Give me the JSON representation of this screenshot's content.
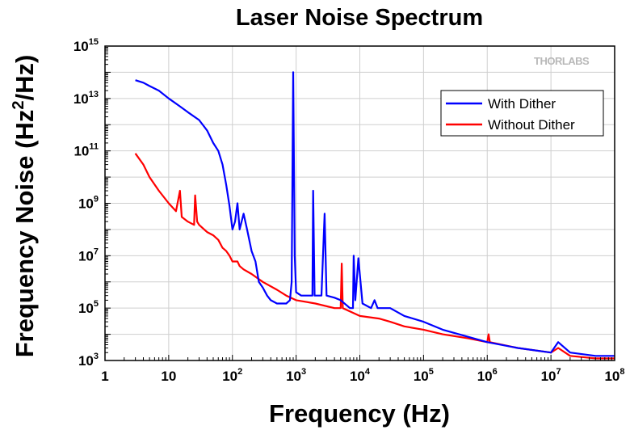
{
  "chart_data": {
    "type": "line",
    "title": "Laser Noise Spectrum",
    "xlabel": "Frequency (Hz)",
    "ylabel": {
      "prefix": "Frequency Noise (Hz",
      "sup": "2",
      "suffix": "/Hz)"
    },
    "x_scale": "log",
    "y_scale": "log",
    "xlim": [
      1,
      100000000
    ],
    "ylim": [
      1000,
      1000000000000000
    ],
    "x_ticks": [
      {
        "value": 1,
        "base": "1",
        "exp": ""
      },
      {
        "value": 10,
        "base": "10",
        "exp": ""
      },
      {
        "value": 100,
        "base": "10",
        "exp": "2"
      },
      {
        "value": 1000,
        "base": "10",
        "exp": "3"
      },
      {
        "value": 10000,
        "base": "10",
        "exp": "4"
      },
      {
        "value": 100000,
        "base": "10",
        "exp": "5"
      },
      {
        "value": 1000000,
        "base": "10",
        "exp": "6"
      },
      {
        "value": 10000000,
        "base": "10",
        "exp": "7"
      },
      {
        "value": 100000000,
        "base": "10",
        "exp": "8"
      }
    ],
    "y_ticks": [
      {
        "value": 1000,
        "base": "10",
        "exp": "3"
      },
      {
        "value": 100000,
        "base": "10",
        "exp": "5"
      },
      {
        "value": 10000000,
        "base": "10",
        "exp": "7"
      },
      {
        "value": 1000000000,
        "base": "10",
        "exp": "9"
      },
      {
        "value": 100000000000,
        "base": "10",
        "exp": "11"
      },
      {
        "value": 10000000000000,
        "base": "10",
        "exp": "13"
      },
      {
        "value": 1000000000000000,
        "base": "10",
        "exp": "15"
      }
    ],
    "grid": true,
    "legend_position": "top-right",
    "logo": "THORLABS",
    "series": [
      {
        "name": "With Dither",
        "color": "#0000ff",
        "points": [
          [
            3,
            50000000000000.0
          ],
          [
            4,
            40000000000000.0
          ],
          [
            5,
            30000000000000.0
          ],
          [
            7,
            20000000000000.0
          ],
          [
            10,
            10000000000000.0
          ],
          [
            15,
            5000000000000.0
          ],
          [
            20,
            3000000000000.0
          ],
          [
            30,
            1500000000000.0
          ],
          [
            40,
            600000000000.0
          ],
          [
            50,
            200000000000.0
          ],
          [
            60,
            100000000000.0
          ],
          [
            70,
            30000000000.0
          ],
          [
            80,
            5000000000.0
          ],
          [
            90,
            800000000.0
          ],
          [
            100,
            100000000.0
          ],
          [
            110,
            200000000.0
          ],
          [
            120,
            1000000000.0
          ],
          [
            130,
            100000000.0
          ],
          [
            150,
            400000000.0
          ],
          [
            170,
            100000000.0
          ],
          [
            200,
            15000000.0
          ],
          [
            230,
            6000000.0
          ],
          [
            260,
            1000000.0
          ],
          [
            300,
            600000.0
          ],
          [
            350,
            300000.0
          ],
          [
            400,
            200000.0
          ],
          [
            500,
            150000.0
          ],
          [
            600,
            150000.0
          ],
          [
            700,
            150000.0
          ],
          [
            800,
            200000.0
          ],
          [
            850,
            1000000.0
          ],
          [
            900,
            100000000000000.0
          ],
          [
            950,
            10000000.0
          ],
          [
            1000,
            400000.0
          ],
          [
            1200,
            300000.0
          ],
          [
            1500,
            300000.0
          ],
          [
            1800,
            300000.0
          ],
          [
            1850,
            3000000000.0
          ],
          [
            1950,
            300000.0
          ],
          [
            2500,
            300000.0
          ],
          [
            2800,
            400000000.0
          ],
          [
            3000,
            300000.0
          ],
          [
            4000,
            250000.0
          ],
          [
            5000,
            200000.0
          ],
          [
            7000,
            100000.0
          ],
          [
            7800,
            100000.0
          ],
          [
            8000,
            10000000.0
          ],
          [
            8500,
            200000.0
          ],
          [
            9500,
            8000000.0
          ],
          [
            11000,
            150000.0
          ],
          [
            15000,
            100000.0
          ],
          [
            17000,
            200000.0
          ],
          [
            19000,
            100000.0
          ],
          [
            30000,
            100000.0
          ],
          [
            50000,
            50000.0
          ],
          [
            100000,
            30000.0
          ],
          [
            200000,
            15000.0
          ],
          [
            500000,
            8000.0
          ],
          [
            1000000,
            5000.0
          ],
          [
            3000000,
            3000.0
          ],
          [
            10000000,
            2000.0
          ],
          [
            13000000,
            5000.0
          ],
          [
            20000000,
            2000.0
          ],
          [
            50000000,
            1500.0
          ],
          [
            100000000,
            1500.0
          ]
        ]
      },
      {
        "name": "Without Dither",
        "color": "#ff0000",
        "points": [
          [
            3,
            80000000000.0
          ],
          [
            4,
            30000000000.0
          ],
          [
            5,
            10000000000.0
          ],
          [
            7,
            3000000000.0
          ],
          [
            10,
            1000000000.0
          ],
          [
            13,
            500000000.0
          ],
          [
            15,
            3000000000.0
          ],
          [
            16,
            300000000.0
          ],
          [
            20,
            200000000.0
          ],
          [
            25,
            150000000.0
          ],
          [
            26,
            2000000000.0
          ],
          [
            28,
            200000000.0
          ],
          [
            30,
            150000000.0
          ],
          [
            40,
            80000000.0
          ],
          [
            50,
            60000000.0
          ],
          [
            60,
            40000000.0
          ],
          [
            70,
            20000000.0
          ],
          [
            80,
            15000000.0
          ],
          [
            90,
            10000000.0
          ],
          [
            100,
            6000000.0
          ],
          [
            120,
            6000000.0
          ],
          [
            130,
            4000000.0
          ],
          [
            150,
            3000000.0
          ],
          [
            200,
            2000000.0
          ],
          [
            300,
            1000000.0
          ],
          [
            500,
            500000.0
          ],
          [
            700,
            300000.0
          ],
          [
            1000,
            200000.0
          ],
          [
            2000,
            150000.0
          ],
          [
            4000,
            100000.0
          ],
          [
            5000,
            100000.0
          ],
          [
            5200,
            5000000.0
          ],
          [
            5400,
            100000.0
          ],
          [
            10000,
            50000.0
          ],
          [
            20000,
            40000.0
          ],
          [
            30000,
            30000.0
          ],
          [
            50000,
            20000.0
          ],
          [
            100000,
            15000.0
          ],
          [
            200000,
            10000.0
          ],
          [
            500000,
            7000.0
          ],
          [
            1000000,
            5000.0
          ],
          [
            1050000,
            10000.0
          ],
          [
            1100000,
            5000.0
          ],
          [
            3000000,
            3000.0
          ],
          [
            10000000,
            2000.0
          ],
          [
            13000000,
            3000.0
          ],
          [
            20000000,
            1500.0
          ],
          [
            50000000,
            1200.0
          ],
          [
            100000000,
            1200.0
          ]
        ]
      }
    ]
  }
}
